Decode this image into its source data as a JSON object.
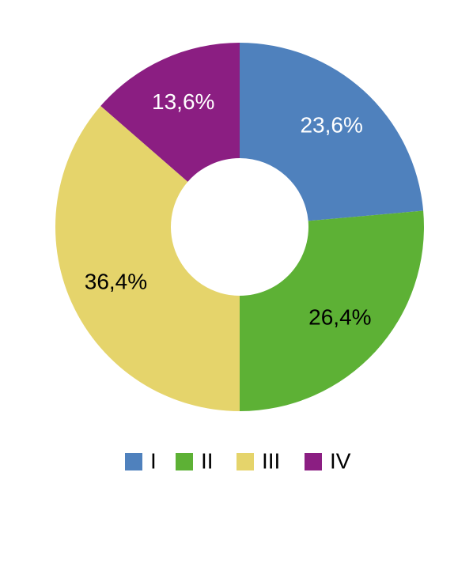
{
  "chart_data": {
    "type": "pie",
    "categories": [
      "I",
      "II",
      "III",
      "IV"
    ],
    "values": [
      23.6,
      26.4,
      36.4,
      13.6
    ],
    "value_labels": [
      "23,6%",
      "26,4%",
      "36,4%",
      "13,6%"
    ],
    "colors": [
      "#4f81bd",
      "#5db135",
      "#e5d46b",
      "#8b1e82"
    ],
    "donut": true
  }
}
